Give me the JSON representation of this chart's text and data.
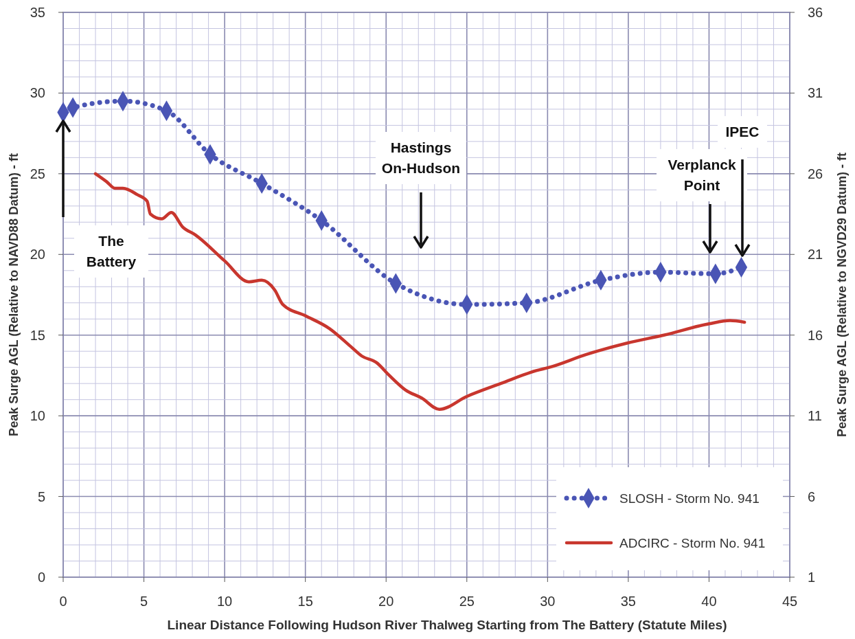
{
  "chart_data": {
    "type": "line",
    "xlabel": "Linear Distance Following Hudson River Thalweg Starting from The Battery (Statute Miles)",
    "ylabel": "Peak Surge AGL (Relative to NAVD88 Datum) - ft",
    "y2label": "Peak Surge AGL (Relative to NGVD29 Datum) - ft",
    "xlim": [
      0,
      45
    ],
    "xticks": [
      0,
      {
        "value": 1,
        "label": null
      },
      {
        "value": 2,
        "label": null
      },
      {
        "value": 3,
        "label": null
      },
      {
        "value": 4,
        "label": null
      },
      5,
      {
        "value": 6,
        "label": null
      },
      {
        "value": 7,
        "label": null
      },
      {
        "value": 8,
        "label": null
      },
      {
        "value": 9,
        "label": null
      },
      10,
      {
        "value": 11,
        "label": null
      },
      {
        "value": 12,
        "label": null
      },
      {
        "value": 13,
        "label": null
      },
      {
        "value": 14,
        "label": null
      },
      15,
      {
        "value": 16,
        "label": null
      },
      {
        "value": 17,
        "label": null
      },
      {
        "value": 18,
        "label": null
      },
      {
        "value": 19,
        "label": null
      },
      20,
      {
        "value": 21,
        "label": null
      },
      {
        "value": 22,
        "label": null
      },
      {
        "value": 23,
        "label": null
      },
      {
        "value": 24,
        "label": null
      },
      25,
      {
        "value": 26,
        "label": null
      },
      {
        "value": 27,
        "label": null
      },
      {
        "value": 28,
        "label": null
      },
      {
        "value": 29,
        "label": null
      },
      30,
      {
        "value": 31,
        "label": null
      },
      {
        "value": 32,
        "label": null
      },
      {
        "value": 33,
        "label": null
      },
      {
        "value": 34,
        "label": null
      },
      35,
      {
        "value": 36,
        "label": null
      },
      {
        "value": 37,
        "label": null
      },
      {
        "value": 38,
        "label": null
      },
      {
        "value": 39,
        "label": null
      },
      40,
      {
        "value": 41,
        "label": null
      },
      {
        "value": 42,
        "label": null
      },
      {
        "value": 43,
        "label": null
      },
      {
        "value": 44,
        "label": null
      },
      45
    ],
    "ylim": [
      0,
      35
    ],
    "yticks": [
      0,
      {
        "value": 1,
        "label": null
      },
      {
        "value": 2,
        "label": null
      },
      {
        "value": 3,
        "label": null
      },
      {
        "value": 4,
        "label": null
      },
      5,
      {
        "value": 6,
        "label": null
      },
      {
        "value": 7,
        "label": null
      },
      {
        "value": 8,
        "label": null
      },
      {
        "value": 9,
        "label": null
      },
      10,
      {
        "value": 11,
        "label": null
      },
      {
        "value": 12,
        "label": null
      },
      {
        "value": 13,
        "label": null
      },
      {
        "value": 14,
        "label": null
      },
      15,
      {
        "value": 16,
        "label": null
      },
      {
        "value": 17,
        "label": null
      },
      {
        "value": 18,
        "label": null
      },
      {
        "value": 19,
        "label": null
      },
      20,
      {
        "value": 21,
        "label": null
      },
      {
        "value": 22,
        "label": null
      },
      {
        "value": 23,
        "label": null
      },
      {
        "value": 24,
        "label": null
      },
      25,
      {
        "value": 26,
        "label": null
      },
      {
        "value": 27,
        "label": null
      },
      {
        "value": 28,
        "label": null
      },
      {
        "value": 29,
        "label": null
      },
      30,
      {
        "value": 31,
        "label": null
      },
      {
        "value": 32,
        "label": null
      },
      {
        "value": 33,
        "label": null
      },
      {
        "value": 34,
        "label": null
      },
      35
    ],
    "y2lim": [
      1,
      36
    ],
    "y2ticks": [
      1,
      6,
      11,
      16,
      21,
      26,
      31,
      36
    ],
    "grid": true,
    "legend": "bottom right",
    "series": [
      {
        "name": "SLOSH - Storm No. 941",
        "color": "#4a55b5",
        "marker": "diamond",
        "line_style": "dotted",
        "x": [
          0,
          0.6,
          3.7,
          6.4,
          9.1,
          12.3,
          16.0,
          20.6,
          25.0,
          28.7,
          33.3,
          37.0,
          40.4,
          42.0
        ],
        "values": [
          28.8,
          29.1,
          29.5,
          28.9,
          26.2,
          24.4,
          22.1,
          18.2,
          16.9,
          17.0,
          18.4,
          18.9,
          18.8,
          19.2
        ]
      },
      {
        "name": "ADCIRC - Storm No. 941",
        "color": "#c8362e",
        "marker": "none",
        "line_style": "solid",
        "x": [
          2.0,
          2.7,
          3.2,
          3.7,
          4.6,
          5.2,
          5.4,
          6.1,
          6.7,
          7.4,
          8.2,
          10.0,
          11.5,
          12.3,
          13.1,
          13.6,
          15.0,
          16.5,
          17.8,
          18.5,
          19.4,
          20.2,
          21.2,
          22.2,
          23.3,
          25.0,
          27.1,
          29.3,
          30.1,
          32.4,
          34.9,
          37.2,
          40.0,
          41.3,
          42.2
        ],
        "values": [
          25.0,
          24.5,
          24.1,
          24.1,
          23.7,
          23.3,
          22.5,
          22.2,
          22.6,
          21.7,
          21.2,
          19.6,
          18.3,
          18.4,
          17.8,
          16.9,
          16.2,
          15.4,
          14.3,
          13.7,
          13.3,
          12.5,
          11.6,
          11.1,
          10.4,
          11.2,
          12.0,
          12.8,
          13.0,
          13.8,
          14.5,
          15.0,
          15.7,
          15.9,
          15.8
        ]
      }
    ],
    "annotations": [
      "The Battery",
      "Hastings On-Hudson",
      "Verplanck Point",
      "IPEC"
    ]
  }
}
